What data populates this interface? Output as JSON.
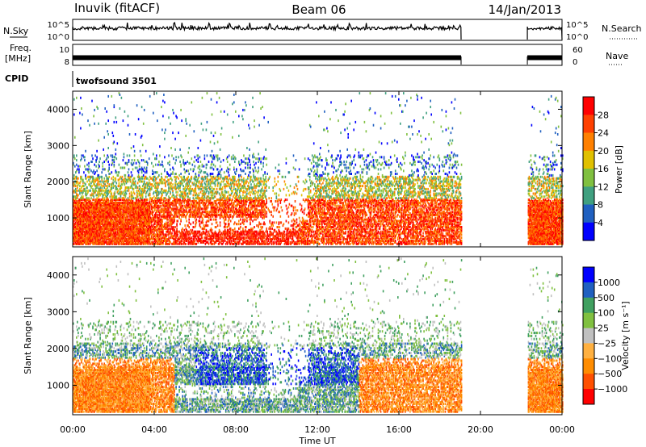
{
  "header": {
    "station": "Inuvik (fitACF)",
    "beam": "Beam 06",
    "date": "14/Jan/2013"
  },
  "top_panels": {
    "nsky_label": "N.Sky",
    "nsky_ticks": [
      "10^5",
      "10^0"
    ],
    "nsearch_label": "N.Search",
    "nsearch_ticks": [
      "10^5",
      "10^0"
    ],
    "freq_label_1": "Freq.",
    "freq_label_2": "[MHz]",
    "freq_ticks": [
      "10",
      "8"
    ],
    "nave_label": "Nave",
    "nave_ticks": [
      "60",
      "0"
    ],
    "cpid_label": "CPID",
    "cpid_value": "twofsound 3501"
  },
  "chart_data": [
    {
      "type": "line",
      "name": "N.Sky / N.Search",
      "x_unit": "hours UT",
      "segments": [
        [
          0.0,
          19.05
        ],
        [
          22.3,
          24.0
        ]
      ],
      "typical_level": "≈10^5 (log scale)",
      "yticks": [
        "10^0",
        "10^5"
      ]
    },
    {
      "type": "line",
      "name": "Freq / Nave",
      "x_unit": "hours UT",
      "segments": [
        [
          0.0,
          19.05
        ],
        [
          22.3,
          24.0
        ]
      ],
      "yticks_left": [
        "8",
        "10"
      ],
      "yticks_right": [
        "0",
        "60"
      ]
    },
    {
      "type": "heatmap",
      "quantity": "Power",
      "ylabel": "Slant Range [km]",
      "xlabel": "Time UT",
      "xlim": [
        0,
        24
      ],
      "ylim": [
        200,
        4500
      ],
      "xticks": [
        "00:00",
        "04:00",
        "08:00",
        "12:00",
        "16:00",
        "20:00",
        "00:00"
      ],
      "yticks": [
        "1000",
        "2000",
        "3000",
        "4000"
      ],
      "colorbar": {
        "label": "Power [dB]",
        "ticks": [
          "4",
          "8",
          "12",
          "16",
          "20",
          "24",
          "28"
        ],
        "range": [
          0,
          32
        ]
      },
      "data_segments_hours": [
        [
          0.0,
          19.05
        ],
        [
          22.3,
          24.0
        ]
      ]
    },
    {
      "type": "heatmap",
      "quantity": "Velocity",
      "ylabel": "Slant Range [km]",
      "xlabel": "Time UT",
      "xlim": [
        0,
        24
      ],
      "ylim": [
        200,
        4500
      ],
      "xticks": [
        "00:00",
        "04:00",
        "08:00",
        "12:00",
        "16:00",
        "20:00",
        "00:00"
      ],
      "yticks": [
        "1000",
        "2000",
        "3000",
        "4000"
      ],
      "colorbar": {
        "label": "Velocity [m s⁻¹]",
        "ticks": [
          "1000",
          "500",
          "100",
          "25",
          "−25",
          "−100",
          "−500",
          "−1000"
        ]
      },
      "data_segments_hours": [
        [
          0.0,
          19.05
        ],
        [
          22.3,
          24.0
        ]
      ]
    }
  ],
  "x_axis": {
    "label": "Time UT",
    "ticks": [
      "00:00",
      "04:00",
      "08:00",
      "12:00",
      "16:00",
      "20:00",
      "00:00"
    ]
  },
  "colors": {
    "power_scale": [
      "#0000ff",
      "#2060c0",
      "#40a080",
      "#80c040",
      "#e0c000",
      "#ff8000",
      "#ff4000",
      "#ff0000"
    ],
    "velocity_scale": [
      "#ff0000",
      "#ff5000",
      "#ff8c00",
      "#ffb040",
      "#c0c0c0",
      "#80c040",
      "#40a060",
      "#2060c0",
      "#0000ff"
    ]
  }
}
